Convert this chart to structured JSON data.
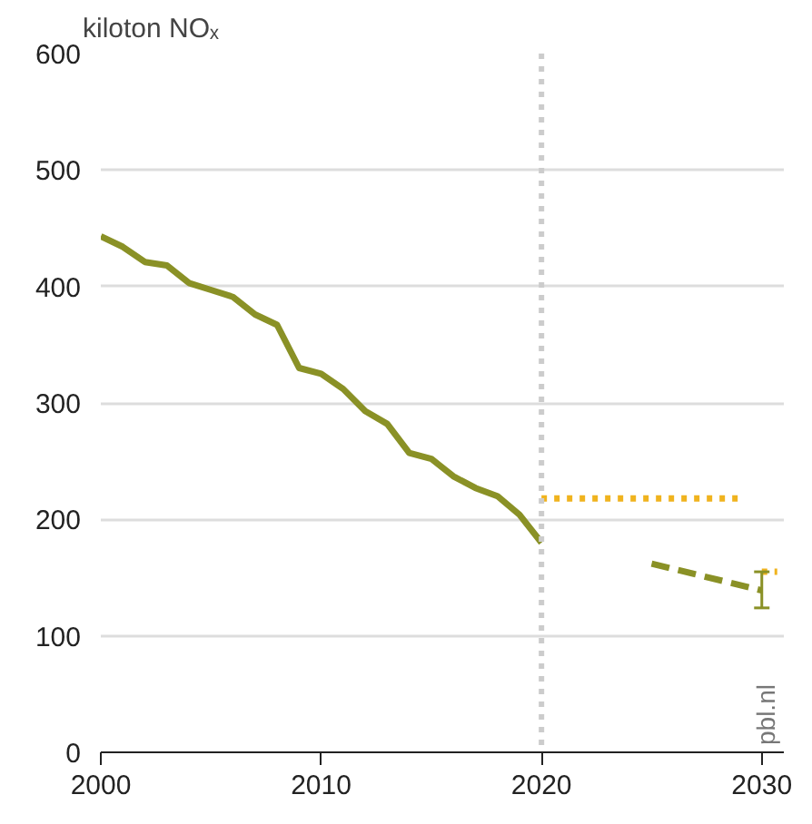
{
  "chart_data": {
    "type": "line",
    "ylabel": "kiloton NOₓ",
    "xlim": [
      2000,
      2031
    ],
    "xticks": [
      {
        "value": 2000,
        "label": "2000"
      },
      {
        "value": 2010,
        "label": "2010"
      },
      {
        "value": 2020,
        "label": "2020"
      },
      {
        "value": 2030,
        "label": "2030"
      }
    ],
    "ylim": [
      0,
      600
    ],
    "yticks": [
      0,
      100,
      200,
      300,
      400,
      500,
      600
    ],
    "grid": "y",
    "series": [
      {
        "color": "#8a9126",
        "line_style": "solid",
        "x": [
          2000,
          2001,
          2002,
          2003,
          2004,
          2005,
          2006,
          2007,
          2008,
          2009,
          2010,
          2011,
          2012,
          2013,
          2014,
          2015,
          2016,
          2017,
          2018,
          2019,
          2020
        ],
        "values": [
          443,
          434,
          421,
          418,
          403,
          397,
          391,
          376,
          367,
          330,
          325,
          312,
          293,
          282,
          257,
          252,
          237,
          227,
          220,
          204,
          180
        ]
      },
      {
        "color": "#f0b31e",
        "line_style": "dotted",
        "x": [
          2020,
          2029
        ],
        "values": [
          218,
          218
        ]
      },
      {
        "color": "#f0b31e",
        "line_style": "dotted",
        "x": [
          2030,
          2030.7
        ],
        "values": [
          155,
          155
        ]
      },
      {
        "color": "#8a9126",
        "line_style": "dashed",
        "x": [
          2025,
          2030
        ],
        "values": [
          162,
          139
        ],
        "errors": [
          null,
          [
            124,
            155
          ]
        ]
      }
    ],
    "ref_lines": [
      {
        "axis": "x",
        "value": 2020,
        "color": "#cccccc",
        "line_style": "dotted"
      }
    ],
    "annotations": [
      "pbl.nl"
    ]
  }
}
